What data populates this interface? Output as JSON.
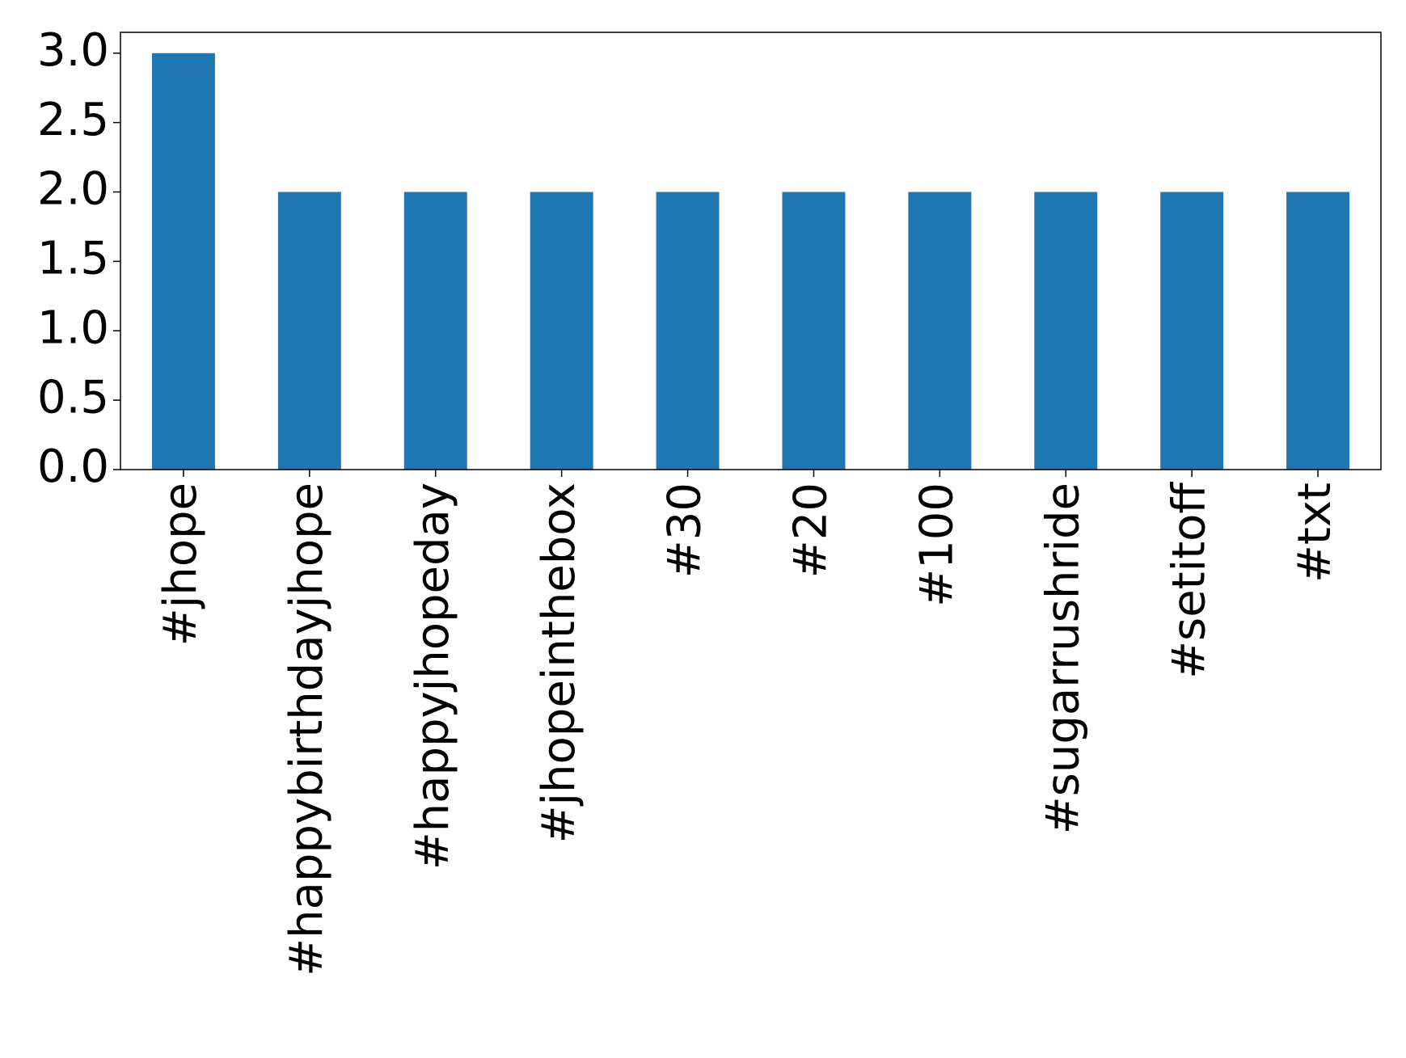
{
  "chart_data": {
    "type": "bar",
    "categories": [
      "#jhope",
      "#happybirthdayjhope",
      "#happyjhopeday",
      "#jhopeinthebox",
      "#30",
      "#20",
      "#100",
      "#sugarrushride",
      "#setitoff",
      "#txt"
    ],
    "values": [
      3,
      2,
      2,
      2,
      2,
      2,
      2,
      2,
      2,
      2
    ],
    "color": "#1f77b4",
    "ylim": [
      0,
      3.15
    ],
    "yticks": [
      {
        "value": 0,
        "label": "0.0"
      },
      0.5,
      {
        "value": 1,
        "label": "1.0"
      },
      1.5,
      {
        "value": 2,
        "label": "2.0"
      },
      2.5,
      {
        "value": 3,
        "label": "3.0"
      }
    ],
    "grid": false
  }
}
